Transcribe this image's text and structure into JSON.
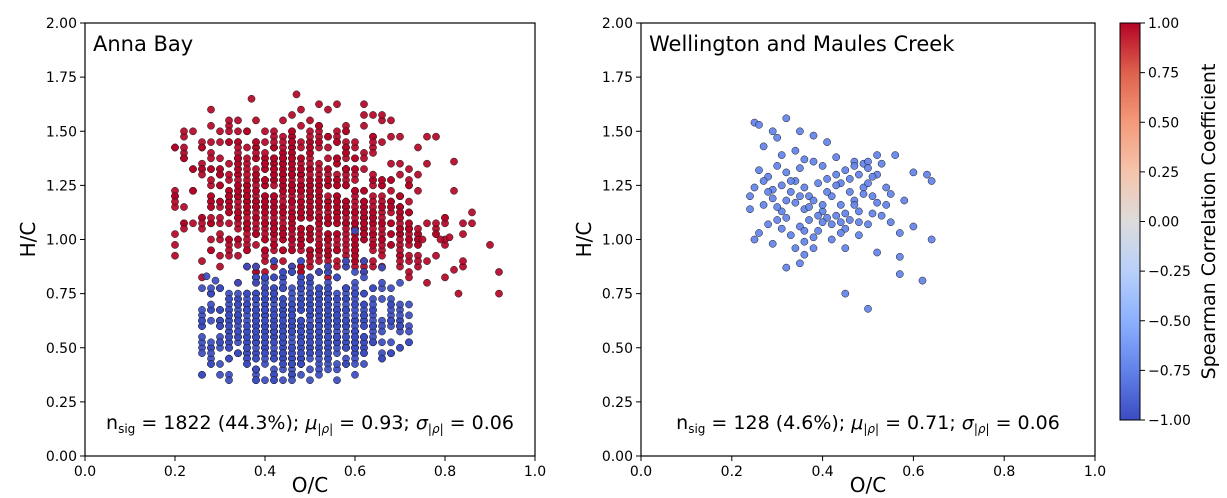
{
  "chart_data": [
    {
      "type": "scatter",
      "title": "Anna Bay",
      "xlabel": "O/C",
      "ylabel": "H/C",
      "xlim": [
        0.0,
        1.0
      ],
      "ylim": [
        0.0,
        2.0
      ],
      "xticks": [
        "0.0",
        "0.2",
        "0.4",
        "0.6",
        "0.8",
        "1.0"
      ],
      "yticks": [
        "0.00",
        "0.25",
        "0.50",
        "0.75",
        "1.00",
        "1.25",
        "1.50",
        "1.75",
        "2.00"
      ],
      "grid": false,
      "stats": {
        "n_base": "n",
        "n_sub": "sig",
        "n_text": " = 1822 (44.3%); ",
        "mu_base": "μ",
        "mu_sub": "|ρ|",
        "mu_text": " = 0.93; ",
        "sigma_base": "σ",
        "sigma_sub": "|ρ|",
        "sigma_text": " = 0.06"
      },
      "series": [
        {
          "colour": "#b40426",
          "seed": 11,
          "count": 950,
          "clusters": [
            {
              "cx": 0.45,
              "cy": 1.22,
              "sx": 0.13,
              "sy": 0.17,
              "w": 0.8
            },
            {
              "cx": 0.62,
              "cy": 1.02,
              "sx": 0.11,
              "sy": 0.1,
              "w": 0.2
            }
          ],
          "bounds": {
            "xmin": 0.19,
            "xmax": 0.93,
            "ymin": 0.75,
            "ymax": 1.67
          },
          "extra": [
            [
              0.92,
              0.85
            ],
            [
              0.92,
              0.75
            ],
            [
              0.83,
              0.75
            ],
            [
              0.82,
              0.86
            ],
            [
              0.79,
              1.0
            ],
            [
              0.81,
              1.01
            ],
            [
              0.75,
              1.0
            ],
            [
              0.82,
              1.36
            ],
            [
              0.37,
              1.65
            ],
            [
              0.47,
              1.67
            ],
            [
              0.34,
              0.8
            ],
            [
              0.4,
              0.82
            ]
          ]
        },
        {
          "colour": "#3b4cc0",
          "seed": 29,
          "count": 870,
          "clusters": [
            {
              "cx": 0.47,
              "cy": 0.62,
              "sx": 0.11,
              "sy": 0.12,
              "w": 1.0
            }
          ],
          "bounds": {
            "xmin": 0.26,
            "xmax": 0.72,
            "ymin": 0.34,
            "ymax": 0.92
          },
          "extra": [
            [
              0.27,
              0.83
            ],
            [
              0.29,
              0.81
            ],
            [
              0.6,
              1.04
            ],
            [
              0.66,
              0.87
            ]
          ]
        }
      ]
    },
    {
      "type": "scatter",
      "title": "Wellington and Maules Creek",
      "xlabel": "O/C",
      "ylabel": "H/C",
      "xlim": [
        0.0,
        1.0
      ],
      "ylim": [
        0.0,
        2.0
      ],
      "xticks": [
        "0.0",
        "0.2",
        "0.4",
        "0.6",
        "0.8",
        "1.0"
      ],
      "yticks": [
        "0.00",
        "0.25",
        "0.50",
        "0.75",
        "1.00",
        "1.25",
        "1.50",
        "1.75",
        "2.00"
      ],
      "grid": false,
      "stats": {
        "n_base": "n",
        "n_sub": "sig",
        "n_text": " = 128 (4.6%); ",
        "mu_base": "μ",
        "mu_sub": "|ρ|",
        "mu_text": " = 0.71; ",
        "sigma_base": "σ",
        "sigma_sub": "|ρ|",
        "sigma_text": " = 0.06"
      },
      "series": [
        {
          "colour": "#6282ea",
          "seed": 0,
          "count": 0,
          "clusters": [],
          "bounds": {},
          "points": [
            [
              0.25,
              1.54
            ],
            [
              0.26,
              1.53
            ],
            [
              0.29,
              1.5
            ],
            [
              0.3,
              1.47
            ],
            [
              0.32,
              1.56
            ],
            [
              0.35,
              1.5
            ],
            [
              0.38,
              1.48
            ],
            [
              0.27,
              1.43
            ],
            [
              0.31,
              1.39
            ],
            [
              0.34,
              1.41
            ],
            [
              0.41,
              1.45
            ],
            [
              0.36,
              1.37
            ],
            [
              0.26,
              1.32
            ],
            [
              0.28,
              1.29
            ],
            [
              0.3,
              1.34
            ],
            [
              0.32,
              1.31
            ],
            [
              0.35,
              1.33
            ],
            [
              0.38,
              1.36
            ],
            [
              0.4,
              1.34
            ],
            [
              0.43,
              1.38
            ],
            [
              0.47,
              1.36
            ],
            [
              0.49,
              1.35
            ],
            [
              0.52,
              1.39
            ],
            [
              0.5,
              1.36
            ],
            [
              0.56,
              1.39
            ],
            [
              0.24,
              1.2
            ],
            [
              0.25,
              1.24
            ],
            [
              0.27,
              1.27
            ],
            [
              0.29,
              1.23
            ],
            [
              0.31,
              1.25
            ],
            [
              0.33,
              1.22
            ],
            [
              0.34,
              1.27
            ],
            [
              0.36,
              1.24
            ],
            [
              0.37,
              1.2
            ],
            [
              0.39,
              1.26
            ],
            [
              0.41,
              1.28
            ],
            [
              0.43,
              1.3
            ],
            [
              0.44,
              1.26
            ],
            [
              0.45,
              1.32
            ],
            [
              0.46,
              1.28
            ],
            [
              0.48,
              1.3
            ],
            [
              0.5,
              1.33
            ],
            [
              0.52,
              1.3
            ],
            [
              0.53,
              1.35
            ],
            [
              0.24,
              1.14
            ],
            [
              0.27,
              1.16
            ],
            [
              0.29,
              1.19
            ],
            [
              0.31,
              1.13
            ],
            [
              0.32,
              1.1
            ],
            [
              0.34,
              1.17
            ],
            [
              0.36,
              1.14
            ],
            [
              0.38,
              1.18
            ],
            [
              0.4,
              1.13
            ],
            [
              0.41,
              1.1
            ],
            [
              0.42,
              1.2
            ],
            [
              0.44,
              1.16
            ],
            [
              0.46,
              1.22
            ],
            [
              0.47,
              1.18
            ],
            [
              0.49,
              1.24
            ],
            [
              0.51,
              1.2
            ],
            [
              0.52,
              1.17
            ],
            [
              0.54,
              1.24
            ],
            [
              0.55,
              1.21
            ],
            [
              0.53,
              1.11
            ],
            [
              0.26,
              1.03
            ],
            [
              0.28,
              1.07
            ],
            [
              0.3,
              1.09
            ],
            [
              0.31,
              1.05
            ],
            [
              0.33,
              1.02
            ],
            [
              0.35,
              1.06
            ],
            [
              0.37,
              1.09
            ],
            [
              0.39,
              1.04
            ],
            [
              0.4,
              1.08
            ],
            [
              0.42,
              1.07
            ],
            [
              0.43,
              1.11
            ],
            [
              0.45,
              1.05
            ],
            [
              0.46,
              1.09
            ],
            [
              0.48,
              1.13
            ],
            [
              0.5,
              1.07
            ],
            [
              0.51,
              1.12
            ],
            [
              0.55,
              1.08
            ],
            [
              0.25,
              1.0
            ],
            [
              0.29,
              0.98
            ],
            [
              0.34,
              0.96
            ],
            [
              0.36,
              0.99
            ],
            [
              0.38,
              1.01
            ],
            [
              0.42,
              1.0
            ],
            [
              0.44,
              1.03
            ],
            [
              0.48,
              1.02
            ],
            [
              0.52,
              0.94
            ],
            [
              0.6,
              1.06
            ],
            [
              0.63,
              1.3
            ],
            [
              0.64,
              1.27
            ],
            [
              0.6,
              1.31
            ],
            [
              0.58,
              1.18
            ],
            [
              0.57,
              1.03
            ],
            [
              0.32,
              0.87
            ],
            [
              0.36,
              0.93
            ],
            [
              0.35,
              0.89
            ],
            [
              0.38,
              0.96
            ],
            [
              0.45,
              0.96
            ],
            [
              0.57,
              0.92
            ],
            [
              0.57,
              0.84
            ],
            [
              0.62,
              0.81
            ],
            [
              0.64,
              1.0
            ],
            [
              0.45,
              0.75
            ],
            [
              0.5,
              0.68
            ],
            [
              0.47,
              1.16
            ],
            [
              0.49,
              1.21
            ],
            [
              0.41,
              1.22
            ],
            [
              0.37,
              1.15
            ],
            [
              0.33,
              1.27
            ],
            [
              0.3,
              1.15
            ],
            [
              0.43,
              1.25
            ],
            [
              0.47,
              1.34
            ],
            [
              0.5,
              1.26
            ],
            [
              0.54,
              1.16
            ],
            [
              0.39,
              1.11
            ],
            [
              0.45,
              1.12
            ],
            [
              0.28,
              1.22
            ],
            [
              0.35,
              1.2
            ],
            [
              0.48,
              1.08
            ],
            [
              0.4,
              1.16
            ],
            [
              0.32,
              1.18
            ],
            [
              0.51,
              1.29
            ],
            [
              0.44,
              1.08
            ],
            [
              0.36,
              1.04
            ]
          ]
        }
      ]
    }
  ],
  "colorbar": {
    "label": "Spearman Correlation Coefficient",
    "range": [
      -1.0,
      1.0
    ],
    "ticks": [
      "−1.00",
      "−0.75",
      "−0.50",
      "−0.25",
      "0.00",
      "0.25",
      "0.50",
      "0.75",
      "1.00"
    ],
    "colormap": "coolwarm",
    "stops": [
      "#3b4cc0",
      "#6282ea",
      "#8db0fe",
      "#b8d0f9",
      "#dddcdc",
      "#f5c4ac",
      "#f49a7b",
      "#de614d",
      "#b40426"
    ]
  }
}
